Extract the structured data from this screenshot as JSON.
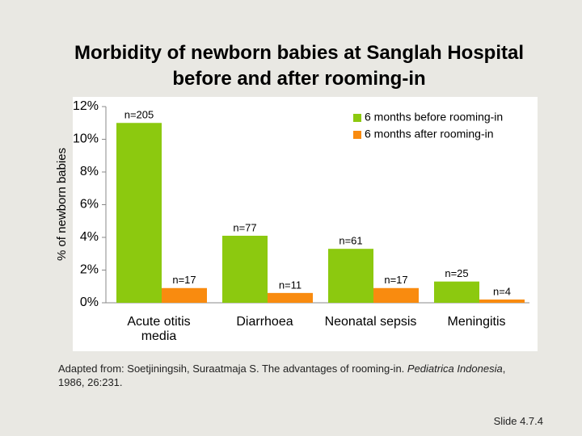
{
  "chart_data": {
    "type": "bar",
    "title": "Morbidity of newborn babies at Sanglah Hospital before and after rooming-in",
    "y_label": "% of newborn babies",
    "categories": [
      "Acute otitis media",
      "Diarrhoea",
      "Neonatal sepsis",
      "Meningitis"
    ],
    "series": [
      {
        "name": "6 months before rooming-in",
        "color": "#8cc90f",
        "values": [
          11.0,
          4.1,
          3.3,
          1.3
        ],
        "bar_labels": [
          "n=205",
          "n=77",
          "n=61",
          "n=25"
        ]
      },
      {
        "name": "6 months after rooming-in",
        "color": "#f98b0f",
        "values": [
          0.9,
          0.6,
          0.9,
          0.2
        ],
        "bar_labels": [
          "n=17",
          "n=11",
          "n=17",
          "n=4"
        ]
      }
    ],
    "ylim": [
      0,
      12
    ],
    "yticks": [
      {
        "value": 0,
        "label": "0%"
      },
      {
        "value": 2,
        "label": "2%"
      },
      {
        "value": 4,
        "label": "4%"
      },
      {
        "value": 6,
        "label": "6%"
      },
      {
        "value": 8,
        "label": "8%"
      },
      {
        "value": 10,
        "label": "10%"
      },
      {
        "value": 12,
        "label": "12%"
      }
    ],
    "legend_position": "top-right"
  },
  "source": {
    "parts": [
      "Adapted from: Soetjiningsih, Suraatmaja S. The advantages of rooming-in. ",
      "Pediatrica Indonesia",
      ", 1986, 26:231."
    ]
  },
  "slide_number": "Slide 4.7.4"
}
